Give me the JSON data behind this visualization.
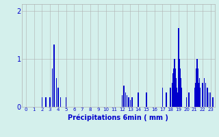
{
  "xlabel": "Précipitations 6min ( mm )",
  "background_color": "#d4f0ec",
  "bar_color": "#0000cc",
  "grid_color": "#b0b0b0",
  "xlim": [
    -0.5,
    23.5
  ],
  "ylim": [
    0,
    2.15
  ],
  "yticks": [
    0,
    1,
    2
  ],
  "xticks": [
    0,
    1,
    2,
    3,
    4,
    5,
    6,
    7,
    8,
    9,
    10,
    11,
    12,
    13,
    14,
    15,
    16,
    17,
    18,
    19,
    20,
    21,
    22,
    23
  ],
  "all_bars": [
    [
      2.0,
      0.2
    ],
    [
      2.5,
      0.2
    ],
    [
      3.0,
      0.2
    ],
    [
      3.3,
      0.8
    ],
    [
      3.5,
      1.3
    ],
    [
      3.8,
      0.6
    ],
    [
      4.0,
      0.4
    ],
    [
      4.3,
      0.2
    ],
    [
      5.0,
      0.2
    ],
    [
      12.0,
      0.25
    ],
    [
      12.2,
      0.45
    ],
    [
      12.4,
      0.3
    ],
    [
      12.6,
      0.25
    ],
    [
      12.8,
      0.2
    ],
    [
      13.0,
      0.15
    ],
    [
      13.2,
      0.2
    ],
    [
      14.0,
      0.3
    ],
    [
      15.0,
      0.3
    ],
    [
      17.0,
      0.4
    ],
    [
      17.5,
      0.3
    ],
    [
      18.0,
      0.4
    ],
    [
      18.2,
      0.5
    ],
    [
      18.3,
      0.7
    ],
    [
      18.4,
      0.8
    ],
    [
      18.5,
      1.0
    ],
    [
      18.6,
      0.8
    ],
    [
      18.7,
      0.6
    ],
    [
      18.8,
      0.4
    ],
    [
      18.9,
      0.3
    ],
    [
      19.0,
      1.65
    ],
    [
      19.1,
      1.0
    ],
    [
      19.2,
      0.8
    ],
    [
      19.3,
      0.6
    ],
    [
      19.4,
      0.4
    ],
    [
      20.0,
      0.2
    ],
    [
      20.3,
      0.3
    ],
    [
      21.0,
      0.4
    ],
    [
      21.1,
      0.5
    ],
    [
      21.2,
      0.8
    ],
    [
      21.3,
      1.0
    ],
    [
      21.4,
      0.8
    ],
    [
      21.5,
      0.5
    ],
    [
      21.6,
      0.6
    ],
    [
      21.7,
      0.4
    ],
    [
      22.0,
      0.5
    ],
    [
      22.2,
      0.6
    ],
    [
      22.4,
      0.5
    ],
    [
      22.6,
      0.4
    ],
    [
      22.8,
      0.3
    ],
    [
      23.0,
      0.3
    ],
    [
      23.3,
      0.2
    ]
  ],
  "bar_width": 0.13,
  "xlabel_fontsize": 7,
  "xtick_fontsize": 5,
  "ytick_fontsize": 7
}
